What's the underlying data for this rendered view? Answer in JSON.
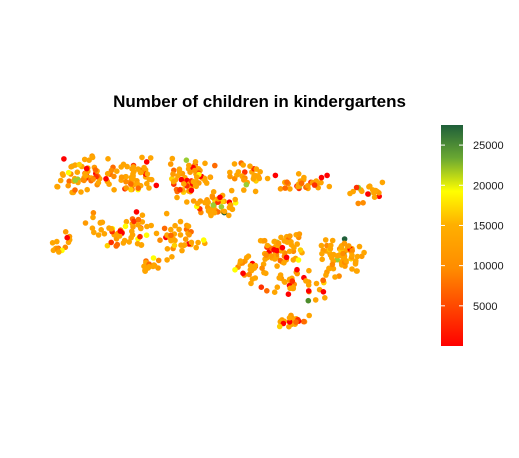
{
  "title": "Number of children in kindergartens",
  "colors": {
    "low": "#ff0000",
    "mid_low": "#ff6a00",
    "mid": "#ffa500",
    "mid_high": "#ffff00",
    "high": "#1f5f3a"
  },
  "chart_data": {
    "type": "scatter",
    "title": "Number of children in kindergartens",
    "legend": {
      "placement": "right",
      "min": 0,
      "max": 27500,
      "tick_labels": [
        "25000",
        "20000",
        "15000",
        "10000",
        "5000"
      ],
      "tick_values": [
        25000,
        20000,
        15000,
        10000,
        5000
      ]
    }
  }
}
